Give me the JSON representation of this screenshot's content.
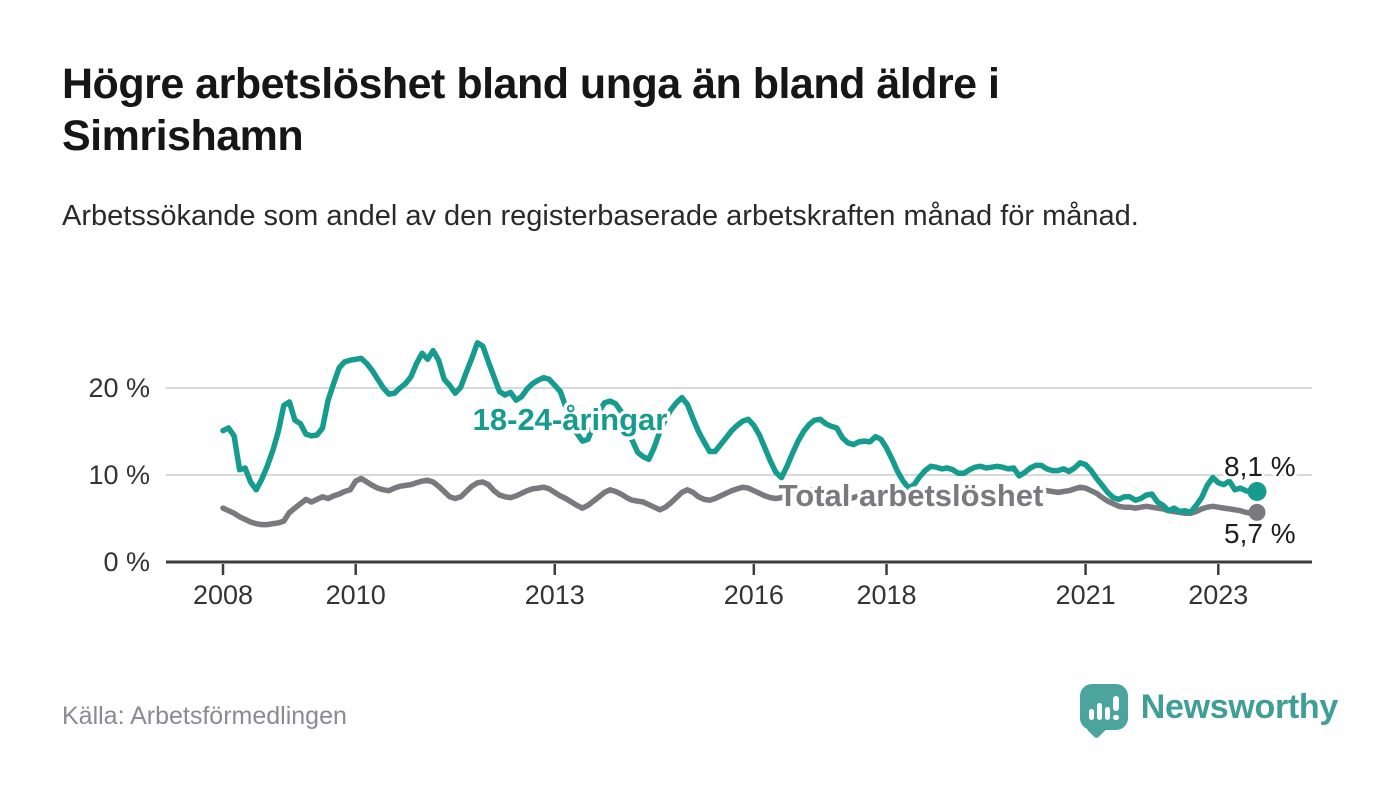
{
  "page": {
    "title": "Högre arbetslöshet bland unga än bland äldre i Simrishamn",
    "subtitle": "Arbetssökande som andel av den registerbaserade arbetskraften månad för månad.",
    "source": "Källa: Arbetsförmedlingen",
    "brand": {
      "name": "Newsworthy",
      "icon": "bar-chart-speech-bubble"
    }
  },
  "colors": {
    "accent_teal": "#169C8F",
    "line_gray": "#7A7A7E",
    "grid": "#D9D9D9",
    "axis": "#3D3D3D",
    "tick_text": "#333333",
    "end_label_text": "#1D1D1D",
    "logo_teal": "#4BA59C",
    "wordmark_teal": "#3F9E95"
  },
  "chart_data": {
    "type": "line",
    "title": "Högre arbetslöshet bland unga än bland äldre i Simrishamn",
    "subtitle": "Arbetssökande som andel av den registerbaserade arbetskraften månad för månad.",
    "source": "Källa: Arbetsförmedlingen",
    "frequency": "monthly",
    "x_start": "2008-01",
    "x_end": "2023-08",
    "x_base_year": 2008,
    "grid": "horizontal",
    "legend_position": "inline-labels",
    "ylim": [
      0,
      27
    ],
    "y_ticks": [
      {
        "label": "0 %",
        "value": 0
      },
      {
        "label": "10 %",
        "value": 10
      },
      {
        "label": "20 %",
        "value": 20
      }
    ],
    "x_ticks": [
      {
        "label": "2008",
        "year": 2008
      },
      {
        "label": "2010",
        "year": 2010
      },
      {
        "label": "2013",
        "year": 2013
      },
      {
        "label": "2016",
        "year": 2016
      },
      {
        "label": "2018",
        "year": 2018
      },
      {
        "label": "2021",
        "year": 2021
      },
      {
        "label": "2023",
        "year": 2023
      }
    ],
    "series": [
      {
        "name": "18-24-åringar",
        "color": "#169C8F",
        "end_label": "8,1 %",
        "end_value": 8.1,
        "values": [
          15.1,
          15.4,
          14.5,
          10.6,
          10.8,
          9.2,
          8.3,
          9.5,
          11.0,
          12.8,
          15.0,
          18.0,
          18.4,
          16.3,
          15.9,
          14.7,
          14.5,
          14.6,
          15.4,
          18.6,
          20.5,
          22.3,
          23.0,
          23.2,
          23.3,
          23.4,
          22.8,
          22.0,
          21.0,
          20.0,
          19.3,
          19.4,
          20.0,
          20.5,
          21.3,
          22.8,
          24.0,
          23.3,
          24.3,
          23.2,
          21.0,
          20.3,
          19.4,
          20.1,
          21.8,
          23.4,
          25.2,
          24.8,
          23.0,
          21.3,
          19.6,
          19.2,
          19.5,
          18.6,
          19.0,
          19.9,
          20.5,
          20.9,
          21.2,
          21.0,
          20.3,
          19.6,
          17.8,
          16.2,
          14.8,
          13.9,
          14.1,
          15.7,
          17.3,
          18.3,
          18.5,
          18.2,
          17.3,
          15.7,
          14.0,
          12.6,
          12.1,
          11.8,
          13.2,
          15.0,
          16.4,
          17.5,
          18.3,
          18.9,
          18.1,
          16.5,
          15.0,
          13.8,
          12.7,
          12.7,
          13.5,
          14.3,
          15.1,
          15.7,
          16.2,
          16.4,
          15.7,
          14.6,
          13.1,
          11.6,
          10.3,
          9.7,
          11.0,
          12.5,
          13.9,
          15.0,
          15.8,
          16.3,
          16.4,
          15.9,
          15.6,
          15.4,
          14.3,
          13.7,
          13.5,
          13.8,
          13.9,
          13.8,
          14.4,
          14.1,
          13.1,
          11.8,
          10.4,
          9.3,
          8.5,
          8.9,
          9.8,
          10.5,
          11.0,
          10.9,
          10.7,
          10.8,
          10.6,
          10.2,
          10.2,
          10.6,
          10.9,
          11.0,
          10.8,
          10.9,
          11.0,
          10.9,
          10.7,
          10.8,
          9.9,
          10.3,
          10.8,
          11.1,
          11.1,
          10.7,
          10.5,
          10.5,
          10.7,
          10.4,
          10.8,
          11.4,
          11.2,
          10.5,
          9.6,
          8.8,
          8.0,
          7.4,
          7.2,
          7.5,
          7.5,
          7.1,
          7.3,
          7.7,
          7.8,
          6.9,
          6.5,
          5.9,
          6.2,
          5.8,
          5.9,
          5.7,
          6.5,
          7.4,
          8.8,
          9.7,
          9.1,
          8.9,
          9.3,
          8.3,
          8.5,
          8.2,
          8.0,
          8.1
        ]
      },
      {
        "name": "Total arbetslöshet",
        "color": "#7A7A7E",
        "end_label": "5,7 %",
        "end_value": 5.7,
        "values": [
          6.2,
          5.9,
          5.6,
          5.2,
          4.9,
          4.6,
          4.4,
          4.3,
          4.3,
          4.4,
          4.5,
          4.7,
          5.7,
          6.2,
          6.7,
          7.2,
          6.9,
          7.2,
          7.5,
          7.3,
          7.6,
          7.8,
          8.1,
          8.3,
          9.3,
          9.6,
          9.2,
          8.8,
          8.5,
          8.3,
          8.2,
          8.5,
          8.7,
          8.8,
          8.9,
          9.1,
          9.3,
          9.4,
          9.2,
          8.7,
          8.1,
          7.5,
          7.3,
          7.5,
          8.1,
          8.7,
          9.1,
          9.2,
          8.9,
          8.2,
          7.7,
          7.5,
          7.4,
          7.6,
          7.9,
          8.2,
          8.4,
          8.5,
          8.6,
          8.4,
          8.0,
          7.6,
          7.3,
          6.9,
          6.5,
          6.2,
          6.5,
          7.0,
          7.5,
          8.0,
          8.3,
          8.1,
          7.8,
          7.4,
          7.1,
          7.0,
          6.9,
          6.6,
          6.3,
          6.0,
          6.3,
          6.8,
          7.4,
          8.0,
          8.3,
          8.0,
          7.5,
          7.2,
          7.1,
          7.3,
          7.6,
          7.9,
          8.2,
          8.4,
          8.6,
          8.5,
          8.2,
          7.9,
          7.6,
          7.4,
          7.3,
          7.4,
          7.7,
          8.0,
          8.2,
          8.3,
          8.3,
          8.2,
          8.1,
          7.9,
          7.7,
          7.5,
          7.3,
          7.2,
          7.4,
          7.6,
          7.8,
          8.0,
          8.1,
          8.0,
          7.8,
          7.5,
          7.2,
          7.0,
          6.9,
          7.0,
          7.2,
          7.4,
          7.6,
          7.5,
          7.4,
          7.5,
          7.4,
          7.2,
          7.1,
          7.2,
          7.4,
          7.5,
          7.6,
          7.7,
          7.7,
          7.6,
          7.7,
          7.8,
          7.7,
          7.8,
          8.0,
          8.2,
          8.3,
          8.2,
          8.1,
          8.0,
          8.1,
          8.2,
          8.4,
          8.6,
          8.5,
          8.2,
          7.9,
          7.4,
          7.0,
          6.7,
          6.4,
          6.3,
          6.3,
          6.2,
          6.3,
          6.4,
          6.3,
          6.2,
          6.1,
          5.9,
          5.8,
          5.7,
          5.6,
          5.6,
          5.8,
          6.1,
          6.3,
          6.4,
          6.3,
          6.2,
          6.1,
          6.0,
          5.9,
          5.7,
          5.6,
          5.7
        ]
      }
    ]
  }
}
